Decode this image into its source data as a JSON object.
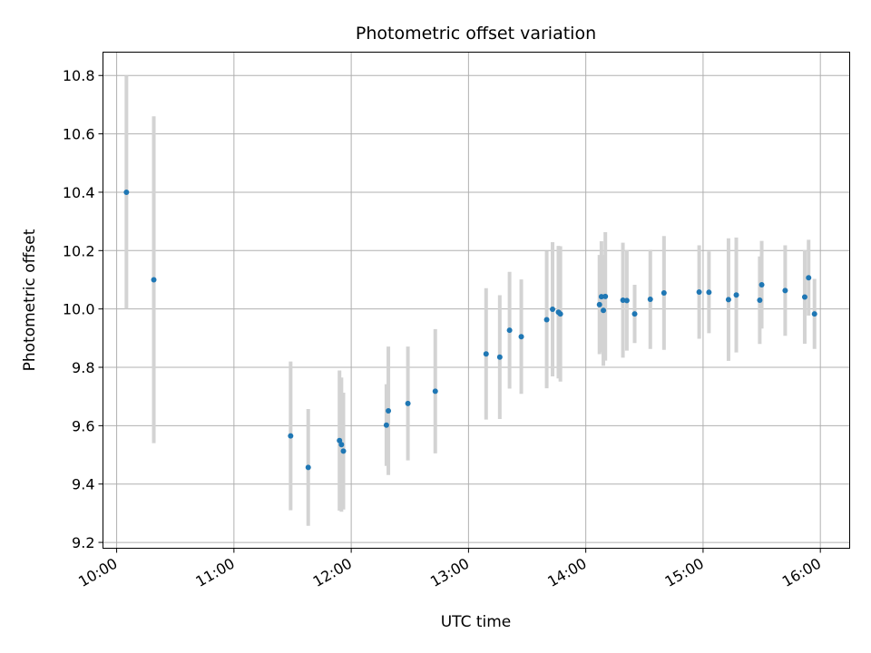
{
  "chart_data": {
    "type": "scatter",
    "title": "Photometric offset variation",
    "xlabel": "UTC time",
    "ylabel": "Photometric offset",
    "x_axis": "time",
    "xlim": [
      "09:53",
      "16:15"
    ],
    "ylim": [
      9.18,
      10.88
    ],
    "x_ticks": [
      "10:00",
      "11:00",
      "12:00",
      "13:00",
      "14:00",
      "15:00",
      "16:00"
    ],
    "y_ticks": [
      "9.2",
      "9.4",
      "9.6",
      "9.8",
      "10.0",
      "10.2",
      "10.4",
      "10.6",
      "10.8"
    ],
    "grid": true,
    "colors": {
      "points": "#1f77b4",
      "errorbars": "#d3d3d3",
      "grid": "#b0b0b0"
    },
    "series": [
      {
        "x": [
          "10:05",
          "10:19",
          "11:29",
          "11:38",
          "11:54",
          "11:55",
          "11:56",
          "12:18",
          "12:19",
          "12:29",
          "12:43",
          "13:09",
          "13:16",
          "13:21",
          "13:27",
          "13:40",
          "13:43",
          "13:46",
          "13:47",
          "14:07",
          "14:08",
          "14:09",
          "14:10",
          "14:19",
          "14:21",
          "14:25",
          "14:33",
          "14:40",
          "14:58",
          "15:03",
          "15:13",
          "15:17",
          "15:29",
          "15:30",
          "15:42",
          "15:52",
          "15:54",
          "15:57"
        ],
        "y": [
          10.4,
          10.1,
          9.565,
          9.457,
          9.549,
          9.535,
          9.513,
          9.602,
          9.651,
          9.676,
          9.718,
          9.846,
          9.835,
          9.927,
          9.905,
          9.963,
          9.999,
          9.989,
          9.983,
          10.015,
          10.042,
          9.995,
          10.043,
          10.03,
          10.029,
          9.983,
          10.033,
          10.055,
          10.058,
          10.057,
          10.032,
          10.048,
          10.03,
          10.083,
          10.063,
          10.041,
          10.107,
          9.983
        ],
        "err": [
          0.4,
          0.56,
          0.255,
          0.2,
          0.24,
          0.23,
          0.2,
          0.14,
          0.22,
          0.195,
          0.213,
          0.225,
          0.212,
          0.2,
          0.196,
          0.235,
          0.23,
          0.227,
          0.232,
          0.17,
          0.19,
          0.19,
          0.22,
          0.197,
          0.172,
          0.1,
          0.17,
          0.195,
          0.16,
          0.14,
          0.21,
          0.197,
          0.15,
          0.15,
          0.155,
          0.16,
          0.13,
          0.12
        ]
      }
    ]
  }
}
